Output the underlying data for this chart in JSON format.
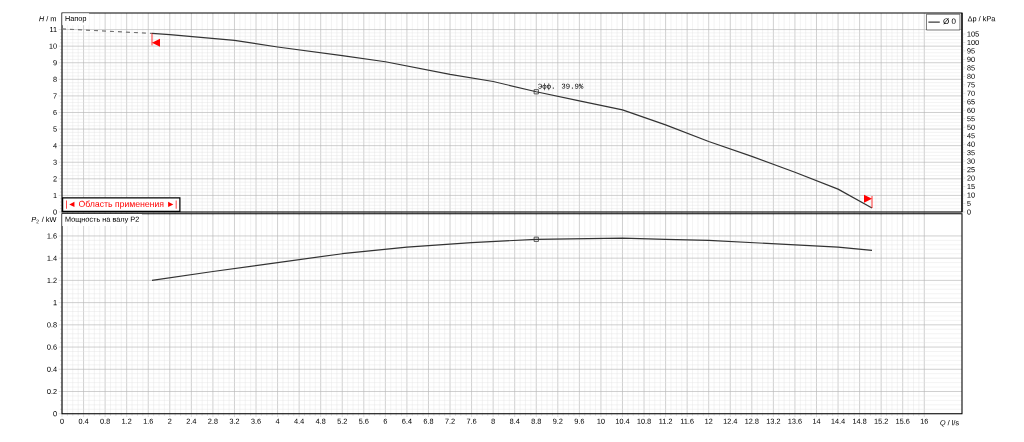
{
  "chart_data": [
    {
      "type": "line",
      "title": "Напор",
      "ylabel": "*H* / m",
      "y2label": "Δp / kPa",
      "xlim": [
        0,
        16.7
      ],
      "xticks": [
        0,
        0.4,
        0.8,
        1.2,
        1.6,
        2,
        2.4,
        2.8,
        3.2,
        3.6,
        4,
        4.4,
        4.8,
        5.2,
        5.6,
        6,
        6.4,
        6.8,
        7.2,
        7.6,
        8,
        8.4,
        8.8,
        9.2,
        9.6,
        10,
        10.4,
        10.8,
        11.2,
        11.6,
        12,
        12.4,
        12.8,
        13.2,
        13.6,
        14,
        14.4,
        14.8,
        15.2,
        15.6,
        16
      ],
      "ylim": [
        0,
        12
      ],
      "yticks": [
        0,
        1,
        2,
        3,
        4,
        5,
        6,
        7,
        8,
        9,
        10,
        11
      ],
      "y2lim": [
        0,
        117.4
      ],
      "y2ticks": [
        0,
        5,
        10,
        15,
        20,
        25,
        30,
        35,
        40,
        45,
        50,
        55,
        60,
        65,
        70,
        75,
        80,
        85,
        90,
        95,
        100,
        105
      ],
      "tick_labels": "y",
      "grid": true,
      "legend": "top right",
      "series": [
        {
          "color": "#777777",
          "line_style": "dashed",
          "x": [
            0,
            1.67
          ],
          "values": [
            11.04,
            10.77
          ]
        },
        {
          "name": "Ø 0",
          "color": "#333333",
          "line_style": "solid",
          "x": [
            1.67,
            2,
            3.2,
            4,
            5.2,
            6,
            7.2,
            8,
            8.8,
            9.6,
            10.4,
            11.2,
            12,
            12.8,
            13.6,
            14.4,
            15.03
          ],
          "values": [
            10.77,
            10.7,
            10.35,
            9.95,
            9.43,
            9.06,
            8.3,
            7.87,
            7.25,
            6.7,
            6.16,
            5.25,
            4.25,
            3.35,
            2.4,
            1.38,
            0.24
          ]
        },
        {
          "type": "scatter",
          "color": "#333333",
          "marker": "square",
          "x": [
            8.8
          ],
          "values": [
            7.25
          ]
        }
      ],
      "annotations": [
        {
          "text": "Эфф. 39.9%",
          "x": 8.8,
          "y": 7.25
        },
        "|◄ Область применения ►|"
      ]
    },
    {
      "type": "line",
      "title": "Мощность на валу P2",
      "ylabel": "*P*$_{2}$ / kW",
      "xlabel": "*Q* / l/s",
      "xlim": [
        0,
        16.7
      ],
      "xticks": [
        0,
        0.4,
        0.8,
        1.2,
        1.6,
        2,
        2.4,
        2.8,
        3.2,
        3.6,
        4,
        4.4,
        4.8,
        5.2,
        5.6,
        6,
        6.4,
        6.8,
        7.2,
        7.6,
        8,
        8.4,
        8.8,
        9.2,
        9.6,
        10,
        10.4,
        10.8,
        11.2,
        11.6,
        12,
        12.4,
        12.8,
        13.2,
        13.6,
        14,
        14.4,
        14.8,
        15.2,
        15.6,
        16
      ],
      "ylim": [
        0,
        1.8
      ],
      "yticks": [
        0,
        0.2,
        0.4,
        0.6,
        0.8,
        1,
        1.2,
        1.4,
        1.6
      ],
      "grid": true,
      "series": [
        {
          "color": "#333333",
          "line_style": "solid",
          "x": [
            1.67,
            2.8,
            4,
            5.2,
            6.4,
            7.6,
            8.8,
            10.4,
            11.2,
            12,
            12.8,
            13.6,
            14.4,
            15.03
          ],
          "values": [
            1.2,
            1.28,
            1.36,
            1.44,
            1.5,
            1.54,
            1.57,
            1.58,
            1.57,
            1.56,
            1.54,
            1.52,
            1.5,
            1.47
          ]
        },
        {
          "type": "scatter",
          "color": "#333333",
          "marker": "square",
          "x": [
            8.8
          ],
          "values": [
            1.57
          ]
        }
      ]
    }
  ]
}
